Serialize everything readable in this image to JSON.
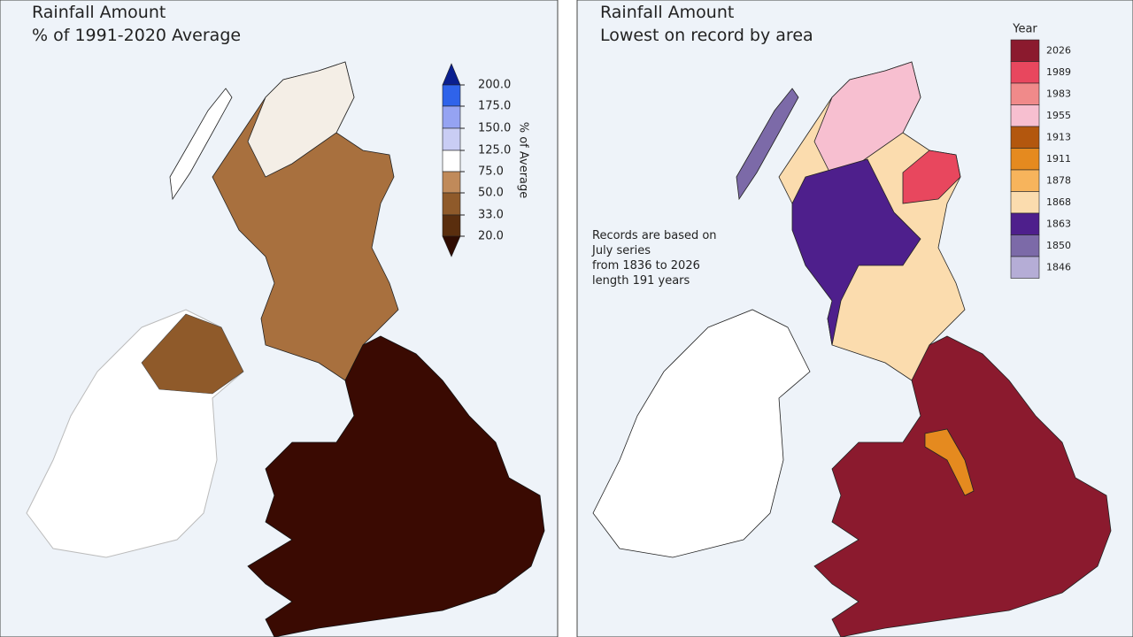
{
  "panels": [
    {
      "title_lines": [
        "Rainfall Amount",
        "% of 1991-2020 Average"
      ],
      "legend": {
        "title": "% of Average",
        "labels": [
          "200.0",
          "175.0",
          "150.0",
          "125.0",
          "75.0",
          "50.0",
          "33.0",
          "20.0"
        ],
        "colors": [
          "#0a1f8f",
          "#2f63ea",
          "#95a3f2",
          "#c9cdf4",
          "#ffffff",
          "#c08a5a",
          "#8f5a2a",
          "#5a2e0e",
          "#2f0c02"
        ]
      }
    },
    {
      "title_lines": [
        "Rainfall Amount",
        "Lowest on record by area"
      ],
      "note_lines": [
        "Records are based on",
        "July series",
        "from 1836 to 2026",
        "length 191 years"
      ],
      "legend": {
        "title": "Year",
        "entries": [
          {
            "label": "2026",
            "color": "#8b1a2e"
          },
          {
            "label": "1989",
            "color": "#e8475e"
          },
          {
            "label": "1983",
            "color": "#f08a8a"
          },
          {
            "label": "1955",
            "color": "#f7bfd0"
          },
          {
            "label": "1913",
            "color": "#b3570e"
          },
          {
            "label": "1911",
            "color": "#e58a1f"
          },
          {
            "label": "1878",
            "color": "#f7b45c"
          },
          {
            "label": "1868",
            "color": "#fbdcae"
          },
          {
            "label": "1863",
            "color": "#4e1f8c"
          },
          {
            "label": "1850",
            "color": "#7c6aa8"
          },
          {
            "label": "1846",
            "color": "#b5add6"
          }
        ]
      }
    }
  ]
}
